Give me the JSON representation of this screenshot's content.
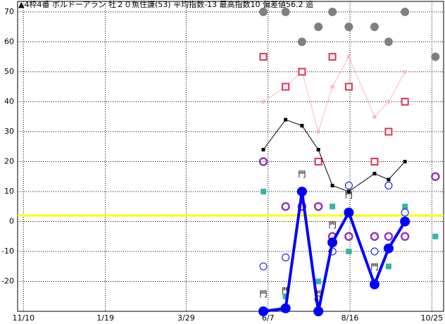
{
  "chart_data": {
    "type": "line",
    "title": "▲4枠4番 ボルドーアラン 牡２０魚住謙(53) 平均指数-13 最高指数10 偏差値56.2 追",
    "x": [
      205,
      224,
      238,
      252,
      264,
      278,
      300,
      312,
      326,
      352
    ],
    "xlim": [
      -5,
      359
    ],
    "xticks": [
      {
        "value": 0,
        "label": "11/10"
      },
      {
        "value": 70,
        "label": "1/19"
      },
      {
        "value": 139,
        "label": "3/29"
      },
      {
        "value": 209,
        "label": "6/7"
      },
      {
        "value": 279,
        "label": "8/16"
      },
      {
        "value": 349,
        "label": "10/25"
      }
    ],
    "ylim": [
      -30,
      73.5
    ],
    "yticks": [
      -20,
      -10,
      0,
      10,
      20,
      30,
      40,
      50,
      60,
      70
    ],
    "grid": true,
    "reference_line": 2,
    "reference_color": "#ffff00",
    "series": [
      {
        "name": "gray",
        "color": "#808080",
        "marker": "circle",
        "line": false,
        "values": [
          70,
          70,
          60,
          65,
          70,
          65,
          65,
          60,
          70,
          55
        ]
      },
      {
        "name": "pink",
        "color": "#ffb6c1",
        "marker": "small-square",
        "line": true,
        "values": [
          40,
          45,
          50,
          30,
          45,
          55,
          35,
          40,
          50,
          null
        ]
      },
      {
        "name": "red",
        "color": "#dd3355",
        "marker": "open-square",
        "line": false,
        "values": [
          55,
          45,
          50,
          20,
          55,
          45,
          20,
          30,
          40,
          null
        ]
      },
      {
        "name": "black",
        "color": "#000000",
        "marker": "small-square",
        "line": true,
        "values": [
          24,
          34,
          32,
          24,
          12,
          10,
          16,
          14,
          20,
          null
        ]
      },
      {
        "name": "purple",
        "color": "#9933bb",
        "marker": "open-circle",
        "line": false,
        "values": [
          20,
          5,
          5,
          5,
          -5,
          -5,
          -5,
          -5,
          -5,
          15
        ]
      },
      {
        "name": "teal",
        "color": "#33b5a5",
        "marker": "square",
        "line": false,
        "values": [
          10,
          -25,
          null,
          -20,
          5,
          -10,
          -20,
          -15,
          5,
          -5
        ]
      },
      {
        "name": "blue-open",
        "color": "#0000ff",
        "marker": "thin-circle",
        "line": false,
        "values": [
          -15,
          -12,
          null,
          -26,
          -10,
          12,
          -10,
          12,
          3,
          null
        ]
      },
      {
        "name": "blue",
        "color": "#0000ff",
        "marker": "big-circle",
        "line": true,
        "width": 4,
        "values": [
          -30,
          -29,
          10,
          -30,
          -7,
          3,
          -21,
          -9,
          0,
          null
        ],
        "labels": [
          "門",
          "門",
          "門",
          "門",
          "門",
          "門",
          "門",
          null,
          null,
          null
        ]
      }
    ]
  }
}
